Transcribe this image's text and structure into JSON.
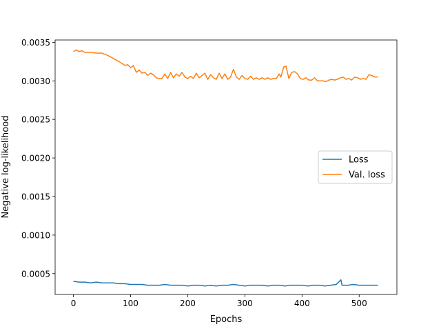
{
  "chart_data": {
    "type": "line",
    "xlabel": "Epochs",
    "ylabel": "Negative log-likelihood",
    "xlim": [
      -32,
      566
    ],
    "ylim": [
      0.00023,
      0.00353
    ],
    "x_ticks": [
      0,
      100,
      200,
      300,
      400,
      500
    ],
    "x_tick_labels": [
      "0",
      "100",
      "200",
      "300",
      "400",
      "500"
    ],
    "y_ticks": [
      0.0005,
      0.001,
      0.0015,
      0.002,
      0.0025,
      0.003,
      0.0035
    ],
    "y_tick_labels": [
      "0.0005",
      "0.0010",
      "0.0015",
      "0.0020",
      "0.0025",
      "0.0030",
      "0.0035"
    ],
    "grid": false,
    "legend_position": "right",
    "series": [
      {
        "name": "Loss",
        "color": "#1f77b4",
        "x": [
          0,
          10,
          20,
          30,
          40,
          50,
          60,
          70,
          80,
          90,
          100,
          110,
          120,
          130,
          140,
          150,
          160,
          170,
          180,
          190,
          200,
          210,
          220,
          230,
          240,
          250,
          260,
          270,
          280,
          290,
          300,
          310,
          320,
          330,
          340,
          350,
          360,
          370,
          380,
          390,
          400,
          410,
          420,
          430,
          440,
          450,
          460,
          468,
          470,
          480,
          490,
          500,
          510,
          520,
          533
        ],
        "y": [
          0.0004,
          0.00039,
          0.00039,
          0.00038,
          0.00039,
          0.00038,
          0.00038,
          0.00038,
          0.00037,
          0.00037,
          0.00036,
          0.00036,
          0.00036,
          0.00035,
          0.00035,
          0.00035,
          0.00036,
          0.00035,
          0.00035,
          0.00035,
          0.00034,
          0.00035,
          0.00035,
          0.00034,
          0.00035,
          0.00034,
          0.00035,
          0.00035,
          0.00036,
          0.00035,
          0.00034,
          0.00035,
          0.00035,
          0.00035,
          0.00034,
          0.00035,
          0.00035,
          0.00034,
          0.00035,
          0.00035,
          0.00035,
          0.00034,
          0.00035,
          0.00035,
          0.00034,
          0.00035,
          0.00036,
          0.00042,
          0.00035,
          0.00035,
          0.00036,
          0.00035,
          0.00035,
          0.00035,
          0.00035
        ]
      },
      {
        "name": "Val. loss",
        "color": "#ff7f0e",
        "x": [
          0,
          5,
          10,
          15,
          20,
          30,
          40,
          50,
          60,
          70,
          80,
          90,
          95,
          100,
          105,
          110,
          115,
          120,
          125,
          130,
          135,
          140,
          145,
          150,
          155,
          160,
          165,
          170,
          175,
          180,
          185,
          190,
          195,
          200,
          205,
          210,
          215,
          220,
          225,
          230,
          235,
          240,
          245,
          250,
          255,
          260,
          265,
          270,
          275,
          280,
          285,
          290,
          295,
          300,
          305,
          310,
          315,
          320,
          325,
          330,
          335,
          340,
          345,
          350,
          355,
          360,
          363,
          368,
          372,
          377,
          382,
          387,
          392,
          397,
          402,
          407,
          412,
          417,
          422,
          427,
          432,
          437,
          442,
          447,
          452,
          457,
          462,
          467,
          472,
          477,
          482,
          487,
          492,
          497,
          502,
          507,
          512,
          517,
          522,
          527,
          533
        ],
        "y": [
          0.00338,
          0.0034,
          0.00338,
          0.00339,
          0.00337,
          0.00337,
          0.00336,
          0.00336,
          0.00333,
          0.00329,
          0.00325,
          0.0032,
          0.00321,
          0.00317,
          0.0032,
          0.00311,
          0.00314,
          0.0031,
          0.00311,
          0.00307,
          0.0031,
          0.00308,
          0.00304,
          0.00303,
          0.00303,
          0.00309,
          0.00303,
          0.00311,
          0.00304,
          0.00309,
          0.00306,
          0.00311,
          0.00305,
          0.00303,
          0.00306,
          0.00303,
          0.0031,
          0.00304,
          0.00307,
          0.0031,
          0.00302,
          0.00308,
          0.00304,
          0.00302,
          0.0031,
          0.00303,
          0.00309,
          0.00302,
          0.00305,
          0.00315,
          0.00305,
          0.00302,
          0.00307,
          0.00303,
          0.00302,
          0.00306,
          0.00302,
          0.00304,
          0.00302,
          0.00304,
          0.00302,
          0.00304,
          0.00302,
          0.00303,
          0.00303,
          0.00309,
          0.00305,
          0.00318,
          0.00319,
          0.00303,
          0.00311,
          0.00312,
          0.00309,
          0.00303,
          0.00302,
          0.00304,
          0.00301,
          0.00301,
          0.00304,
          0.003,
          0.003,
          0.003,
          0.00299,
          0.00301,
          0.00302,
          0.00301,
          0.00302,
          0.00304,
          0.00305,
          0.00302,
          0.00303,
          0.00301,
          0.00305,
          0.00304,
          0.00302,
          0.00303,
          0.00302,
          0.00308,
          0.00307,
          0.00305,
          0.00305
        ]
      }
    ]
  }
}
